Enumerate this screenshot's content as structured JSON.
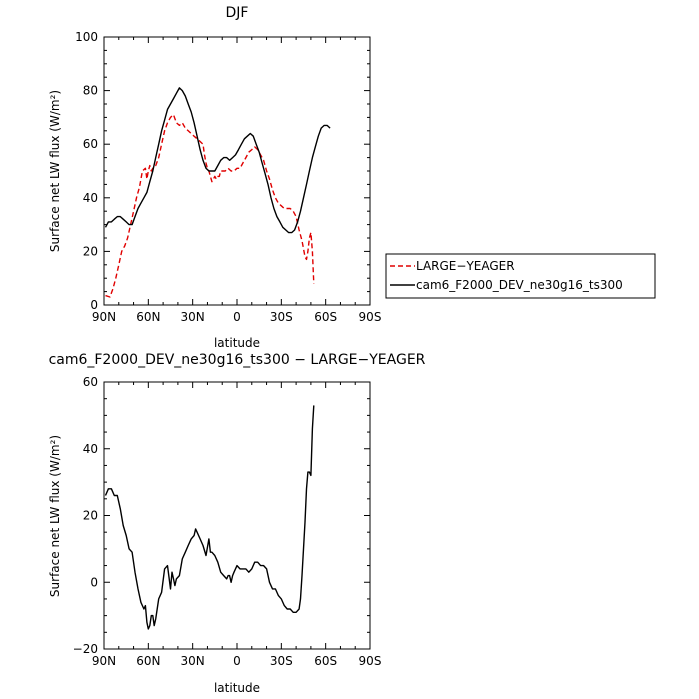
{
  "chart_data": [
    {
      "type": "line",
      "title": "DJF",
      "xlabel": "latitude",
      "ylabel": "Surface net LW flux (W/m²)",
      "xlim": [
        90,
        -90
      ],
      "ylim": [
        0,
        100
      ],
      "xticks": [
        90,
        60,
        30,
        0,
        -30,
        -60,
        -90
      ],
      "xtick_labels": [
        "90N",
        "60N",
        "30N",
        "0",
        "30S",
        "60S",
        "90S"
      ],
      "yticks": [
        0,
        20,
        40,
        60,
        80,
        100
      ],
      "ytick_labels": [
        "0",
        "20",
        "40",
        "60",
        "80",
        "100"
      ],
      "legend_position": "right",
      "series": [
        {
          "name": "LARGE−YEAGER",
          "color": "#e00000",
          "style": "dashed",
          "points": [
            [
              89,
              3.5
            ],
            [
              86,
              3
            ],
            [
              84,
              6
            ],
            [
              82,
              10
            ],
            [
              80,
              15
            ],
            [
              78,
              20
            ],
            [
              76,
              22
            ],
            [
              74,
              25
            ],
            [
              72,
              30
            ],
            [
              70,
              35
            ],
            [
              68,
              40
            ],
            [
              66,
              44
            ],
            [
              64,
              50
            ],
            [
              62,
              51
            ],
            [
              61,
              47
            ],
            [
              60,
              50
            ],
            [
              59,
              52
            ],
            [
              58,
              50
            ],
            [
              57,
              51
            ],
            [
              55,
              52
            ],
            [
              53,
              55
            ],
            [
              51,
              60
            ],
            [
              49,
              65
            ],
            [
              47,
              68
            ],
            [
              45,
              70
            ],
            [
              43,
              71
            ],
            [
              41,
              68
            ],
            [
              39,
              67
            ],
            [
              37,
              68
            ],
            [
              35,
              66
            ],
            [
              33,
              65
            ],
            [
              31,
              64
            ],
            [
              29,
              63
            ],
            [
              27,
              62
            ],
            [
              25,
              61
            ],
            [
              23,
              60
            ],
            [
              22,
              56
            ],
            [
              21,
              53
            ],
            [
              20,
              51
            ],
            [
              19,
              50
            ],
            [
              18,
              48
            ],
            [
              17,
              46
            ],
            [
              16,
              47
            ],
            [
              15,
              48
            ],
            [
              14,
              47
            ],
            [
              13,
              48
            ],
            [
              12,
              48
            ],
            [
              11,
              50
            ],
            [
              10,
              50
            ],
            [
              8,
              50
            ],
            [
              6,
              51
            ],
            [
              4,
              50
            ],
            [
              2,
              50
            ],
            [
              0,
              51
            ],
            [
              -2,
              51
            ],
            [
              -4,
              53
            ],
            [
              -6,
              55
            ],
            [
              -8,
              57
            ],
            [
              -10,
              58
            ],
            [
              -12,
              59
            ],
            [
              -14,
              58
            ],
            [
              -16,
              56
            ],
            [
              -18,
              54
            ],
            [
              -20,
              50
            ],
            [
              -22,
              47
            ],
            [
              -24,
              43
            ],
            [
              -26,
              40
            ],
            [
              -28,
              38
            ],
            [
              -30,
              37
            ],
            [
              -32,
              36
            ],
            [
              -34,
              36
            ],
            [
              -36,
              36
            ],
            [
              -38,
              35
            ],
            [
              -40,
              33
            ],
            [
              -42,
              28
            ],
            [
              -44,
              24
            ],
            [
              -46,
              18
            ],
            [
              -47,
              17
            ],
            [
              -48,
              20
            ],
            [
              -49,
              25
            ],
            [
              -50,
              27
            ],
            [
              -51,
              20
            ],
            [
              -52,
              8
            ]
          ]
        },
        {
          "name": "cam6_F2000_DEV_ne30g16_ts300",
          "color": "#000000",
          "style": "solid",
          "points": [
            [
              89,
              29
            ],
            [
              87,
              31
            ],
            [
              85,
              31
            ],
            [
              83,
              32
            ],
            [
              81,
              33
            ],
            [
              79,
              33
            ],
            [
              77,
              32
            ],
            [
              75,
              31
            ],
            [
              73,
              30
            ],
            [
              71,
              30
            ],
            [
              69,
              33
            ],
            [
              67,
              36
            ],
            [
              65,
              38
            ],
            [
              63,
              40
            ],
            [
              61,
              42
            ],
            [
              59,
              46
            ],
            [
              57,
              50
            ],
            [
              55,
              55
            ],
            [
              53,
              60
            ],
            [
              51,
              65
            ],
            [
              49,
              69
            ],
            [
              47,
              73
            ],
            [
              45,
              75
            ],
            [
              43,
              77
            ],
            [
              41,
              79
            ],
            [
              39,
              81
            ],
            [
              37,
              80
            ],
            [
              35,
              78
            ],
            [
              33,
              75
            ],
            [
              31,
              72
            ],
            [
              29,
              68
            ],
            [
              27,
              63
            ],
            [
              25,
              58
            ],
            [
              23,
              54
            ],
            [
              21,
              51
            ],
            [
              19,
              50
            ],
            [
              17,
              50
            ],
            [
              15,
              50
            ],
            [
              13,
              52
            ],
            [
              11,
              54
            ],
            [
              9,
              55
            ],
            [
              7,
              55
            ],
            [
              5,
              54
            ],
            [
              3,
              55
            ],
            [
              1,
              56
            ],
            [
              -1,
              58
            ],
            [
              -3,
              60
            ],
            [
              -5,
              62
            ],
            [
              -7,
              63
            ],
            [
              -9,
              64
            ],
            [
              -11,
              63
            ],
            [
              -13,
              60
            ],
            [
              -15,
              57
            ],
            [
              -17,
              53
            ],
            [
              -19,
              49
            ],
            [
              -21,
              45
            ],
            [
              -23,
              40
            ],
            [
              -25,
              36
            ],
            [
              -27,
              33
            ],
            [
              -29,
              31
            ],
            [
              -31,
              29
            ],
            [
              -33,
              28
            ],
            [
              -35,
              27
            ],
            [
              -37,
              27
            ],
            [
              -39,
              28
            ],
            [
              -41,
              31
            ],
            [
              -43,
              35
            ],
            [
              -45,
              40
            ],
            [
              -47,
              45
            ],
            [
              -49,
              50
            ],
            [
              -51,
              55
            ],
            [
              -53,
              59
            ],
            [
              -55,
              63
            ],
            [
              -57,
              66
            ],
            [
              -59,
              67
            ],
            [
              -61,
              67
            ],
            [
              -63,
              66
            ]
          ]
        }
      ]
    },
    {
      "type": "line",
      "title": "cam6_F2000_DEV_ne30g16_ts300 − LARGE−YEAGER",
      "xlabel": "latitude",
      "ylabel": "Surface net LW flux (W/m²)",
      "xlim": [
        90,
        -90
      ],
      "ylim": [
        -20,
        60
      ],
      "xticks": [
        90,
        60,
        30,
        0,
        -30,
        -60,
        -90
      ],
      "xtick_labels": [
        "90N",
        "60N",
        "30N",
        "0",
        "30S",
        "60S",
        "90S"
      ],
      "yticks": [
        -20,
        0,
        20,
        40,
        60
      ],
      "ytick_labels": [
        "−20",
        "0",
        "20",
        "40",
        "60"
      ],
      "series": [
        {
          "color": "#000000",
          "style": "solid",
          "points": [
            [
              89,
              26
            ],
            [
              87,
              28
            ],
            [
              85,
              28
            ],
            [
              83,
              26
            ],
            [
              81,
              26
            ],
            [
              79,
              22
            ],
            [
              77,
              17
            ],
            [
              75,
              14
            ],
            [
              73,
              10
            ],
            [
              71,
              9
            ],
            [
              69,
              3
            ],
            [
              67,
              -2
            ],
            [
              65,
              -6
            ],
            [
              63,
              -8
            ],
            [
              62,
              -7
            ],
            [
              61,
              -12
            ],
            [
              60,
              -14
            ],
            [
              59,
              -13
            ],
            [
              58,
              -10
            ],
            [
              57,
              -10
            ],
            [
              56,
              -13
            ],
            [
              55,
              -11
            ],
            [
              53,
              -5
            ],
            [
              51,
              -3
            ],
            [
              49,
              4
            ],
            [
              47,
              5
            ],
            [
              45,
              -2
            ],
            [
              44,
              3
            ],
            [
              43,
              1
            ],
            [
              42,
              -1
            ],
            [
              41,
              1
            ],
            [
              39,
              2
            ],
            [
              37,
              7
            ],
            [
              35,
              9
            ],
            [
              33,
              11
            ],
            [
              31,
              13
            ],
            [
              29,
              14
            ],
            [
              28,
              16
            ],
            [
              27,
              15
            ],
            [
              25,
              13
            ],
            [
              23,
              11
            ],
            [
              21,
              8
            ],
            [
              19,
              13
            ],
            [
              18,
              9
            ],
            [
              17,
              9
            ],
            [
              15,
              8
            ],
            [
              13,
              6
            ],
            [
              11,
              3
            ],
            [
              9,
              2
            ],
            [
              7,
              1
            ],
            [
              6,
              2
            ],
            [
              5,
              2
            ],
            [
              4,
              0
            ],
            [
              3,
              2
            ],
            [
              2,
              3
            ],
            [
              0,
              5
            ],
            [
              -2,
              4
            ],
            [
              -4,
              4
            ],
            [
              -6,
              4
            ],
            [
              -8,
              3
            ],
            [
              -10,
              4
            ],
            [
              -12,
              6
            ],
            [
              -14,
              6
            ],
            [
              -16,
              5
            ],
            [
              -18,
              5
            ],
            [
              -20,
              4
            ],
            [
              -22,
              0
            ],
            [
              -24,
              -2
            ],
            [
              -26,
              -2
            ],
            [
              -28,
              -4
            ],
            [
              -30,
              -5
            ],
            [
              -32,
              -7
            ],
            [
              -34,
              -8
            ],
            [
              -36,
              -8
            ],
            [
              -38,
              -9
            ],
            [
              -40,
              -9
            ],
            [
              -42,
              -8
            ],
            [
              -43,
              -5
            ],
            [
              -44,
              2
            ],
            [
              -45,
              10
            ],
            [
              -46,
              18
            ],
            [
              -47,
              28
            ],
            [
              -48,
              33
            ],
            [
              -49,
              33
            ],
            [
              -50,
              32
            ],
            [
              -51,
              46
            ],
            [
              -52,
              53
            ]
          ]
        }
      ]
    }
  ]
}
